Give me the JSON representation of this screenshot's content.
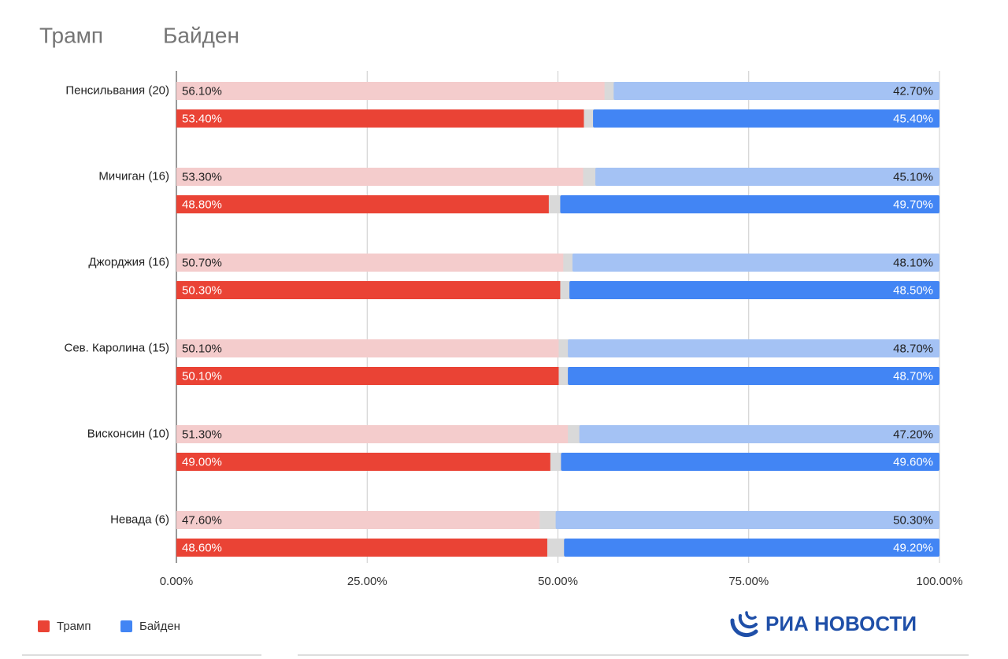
{
  "chart_data": {
    "type": "bar",
    "header_labels": [
      "Трамп",
      "Байден"
    ],
    "categories": [
      "Пенсильвания (20)",
      "Мичиган (16)",
      "Джорджия (16)",
      "Сев. Каролина (15)",
      "Висконсин (10)",
      "Невада (6)"
    ],
    "series": [
      {
        "name": "Трамп",
        "color": "#ea4335",
        "colors": [
          "#f4cccc",
          "#ea4335"
        ],
        "values": [
          [
            56.1,
            53.4
          ],
          [
            53.3,
            48.8
          ],
          [
            50.7,
            50.3
          ],
          [
            50.1,
            50.1
          ],
          [
            51.3,
            49.0
          ],
          [
            47.6,
            48.6
          ]
        ],
        "value_labels": [
          [
            "56.10%",
            "53.40%"
          ],
          [
            "53.30%",
            "48.80%"
          ],
          [
            "50.70%",
            "50.30%"
          ],
          [
            "50.10%",
            "50.10%"
          ],
          [
            "51.30%",
            "49.00%"
          ],
          [
            "47.60%",
            "48.60%"
          ]
        ]
      },
      {
        "name": "Байден",
        "color": "#4285f4",
        "colors": [
          "#a4c2f4",
          "#4285f4"
        ],
        "values": [
          [
            42.7,
            45.4
          ],
          [
            45.1,
            49.7
          ],
          [
            48.1,
            48.5
          ],
          [
            48.7,
            48.7
          ],
          [
            47.2,
            49.6
          ],
          [
            50.3,
            49.2
          ]
        ],
        "value_labels": [
          [
            "42.70%",
            "45.40%"
          ],
          [
            "45.10%",
            "49.70%"
          ],
          [
            "48.10%",
            "48.50%"
          ],
          [
            "48.70%",
            "48.70%"
          ],
          [
            "47.20%",
            "49.60%"
          ],
          [
            "50.30%",
            "49.20%"
          ]
        ]
      }
    ],
    "xlim": [
      0,
      100
    ],
    "xticks": [
      {
        "value": 0,
        "label": "0.00%"
      },
      {
        "value": 25,
        "label": "25.00%"
      },
      {
        "value": 50,
        "label": "50.00%"
      },
      {
        "value": 75,
        "label": "75.00%"
      },
      {
        "value": 100,
        "label": "100.00%"
      }
    ],
    "grid": true,
    "logo": "РИА НОВОСТИ"
  }
}
